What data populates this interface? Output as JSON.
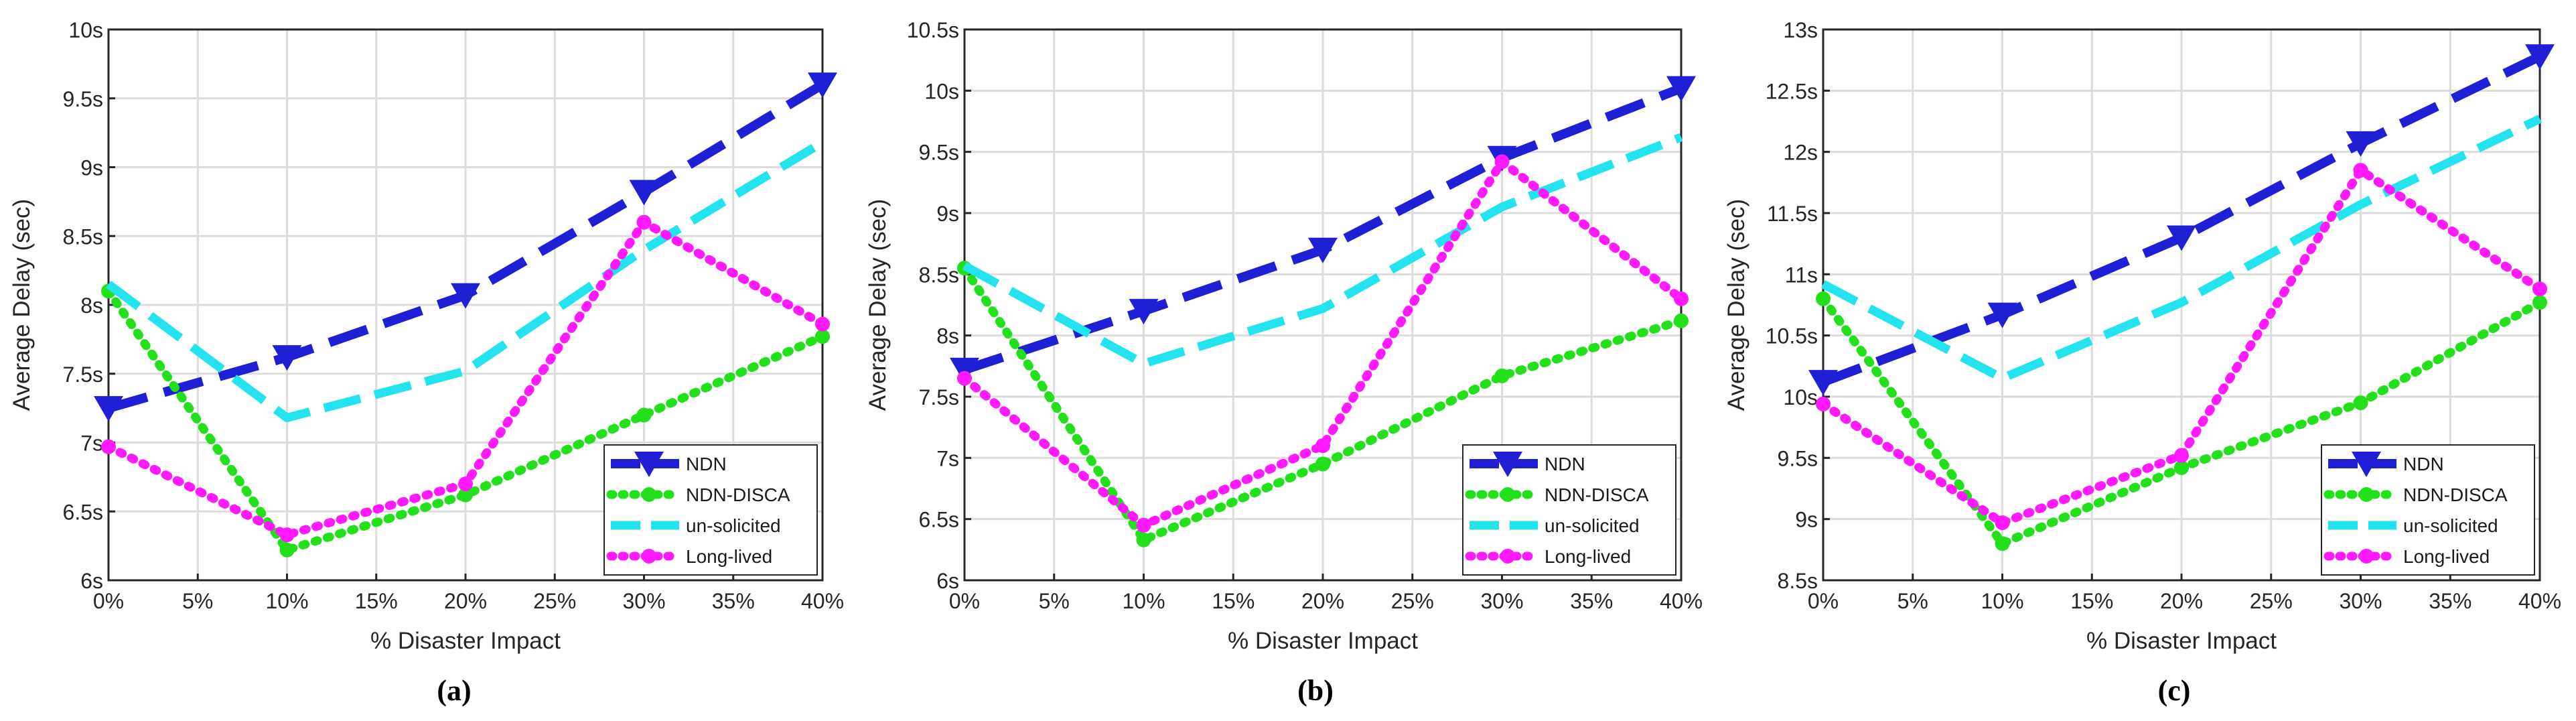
{
  "styles": {
    "NDN": {
      "color": "#1f1fd6",
      "dash": "60,26",
      "width": 14,
      "marker": "triangle-down"
    },
    "NDN-DISCA": {
      "color": "#22e01a",
      "dash": "4,15",
      "width": 13,
      "marker": "circle"
    },
    "un-solicited": {
      "color": "#22e3ee",
      "dash": "56,22",
      "width": 13,
      "marker": "none"
    },
    "Long-lived": {
      "color": "#ff19ff",
      "dash": "4,15",
      "width": 13,
      "marker": "circle"
    }
  },
  "chart_data": [
    {
      "type": "line",
      "caption": "(a)",
      "xlabel": "% Disaster Impact",
      "ylabel": "Average Delay (sec)",
      "categories": [
        "0%",
        "10%",
        "20%",
        "30%",
        "40%"
      ],
      "x": [
        0,
        10,
        20,
        30,
        40
      ],
      "xticks": [
        "0%",
        "5%",
        "10%",
        "15%",
        "20%",
        "25%",
        "30%",
        "35%",
        "40%"
      ],
      "ylim": [
        6,
        10
      ],
      "yticks": [
        "6s",
        "6.5s",
        "7s",
        "7.5s",
        "8s",
        "8.5s",
        "9s",
        "9.5s",
        "10s"
      ],
      "grid": true,
      "legend_position": "bottom-right",
      "series": [
        {
          "name": "NDN",
          "values": [
            7.25,
            7.62,
            8.07,
            8.82,
            9.6
          ]
        },
        {
          "name": "NDN-DISCA",
          "values": [
            8.1,
            6.22,
            6.62,
            7.2,
            7.77
          ]
        },
        {
          "name": "un-solicited",
          "values": [
            8.15,
            7.18,
            7.52,
            8.4,
            9.18
          ]
        },
        {
          "name": "Long-lived",
          "values": [
            6.97,
            6.33,
            6.7,
            8.6,
            7.86
          ]
        }
      ]
    },
    {
      "type": "line",
      "caption": "(b)",
      "xlabel": "% Disaster Impact",
      "ylabel": "Average Delay (sec)",
      "categories": [
        "0%",
        "10%",
        "20%",
        "30%",
        "40%"
      ],
      "x": [
        0,
        10,
        20,
        30,
        40
      ],
      "xticks": [
        "0%",
        "5%",
        "10%",
        "15%",
        "20%",
        "25%",
        "30%",
        "35%",
        "40%"
      ],
      "ylim": [
        6,
        10.5
      ],
      "yticks": [
        "6s",
        "6.5s",
        "7s",
        "7.5s",
        "8s",
        "8.5s",
        "9s",
        "9.5s",
        "10s",
        "10.5s"
      ],
      "grid": true,
      "legend_position": "bottom-right",
      "series": [
        {
          "name": "NDN",
          "values": [
            7.72,
            8.2,
            8.7,
            9.45,
            10.02
          ]
        },
        {
          "name": "NDN-DISCA",
          "values": [
            8.55,
            6.33,
            6.95,
            7.67,
            8.12
          ]
        },
        {
          "name": "un-solicited",
          "values": [
            8.57,
            7.77,
            8.22,
            9.05,
            9.62
          ]
        },
        {
          "name": "Long-lived",
          "values": [
            7.65,
            6.45,
            7.1,
            9.42,
            8.3
          ]
        }
      ]
    },
    {
      "type": "line",
      "caption": "(c)",
      "xlabel": "% Disaster Impact",
      "ylabel": "Average Delay (sec)",
      "categories": [
        "0%",
        "10%",
        "20%",
        "30%",
        "40%"
      ],
      "x": [
        0,
        10,
        20,
        30,
        40
      ],
      "xticks": [
        "0%",
        "5%",
        "10%",
        "15%",
        "20%",
        "25%",
        "30%",
        "35%",
        "40%"
      ],
      "ylim": [
        8.5,
        13
      ],
      "yticks": [
        "8.5s",
        "9s",
        "9.5s",
        "10s",
        "10.5s",
        "11s",
        "11.5s",
        "12s",
        "12.5s",
        "13s"
      ],
      "grid": true,
      "legend_position": "bottom-right",
      "series": [
        {
          "name": "NDN",
          "values": [
            10.12,
            10.67,
            11.3,
            12.07,
            12.78
          ]
        },
        {
          "name": "NDN-DISCA",
          "values": [
            10.8,
            8.8,
            9.42,
            9.95,
            10.77
          ]
        },
        {
          "name": "un-solicited",
          "values": [
            10.92,
            10.15,
            10.77,
            11.57,
            12.27
          ]
        },
        {
          "name": "Long-lived",
          "values": [
            9.94,
            8.97,
            9.52,
            11.85,
            10.88
          ]
        }
      ]
    }
  ]
}
